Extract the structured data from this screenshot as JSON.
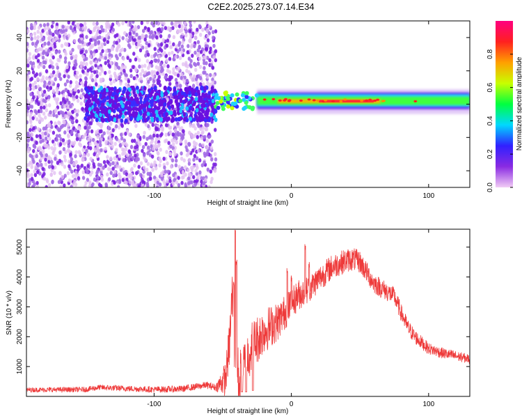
{
  "title": "C2E2.2025.273.07.14.E34",
  "chart_data": [
    {
      "type": "heatmap",
      "title": "C2E2.2025.273.07.14.E34",
      "xlabel": "Height of straight line (km)",
      "ylabel": "Frequency (Hz)",
      "xlim": [
        -193,
        130
      ],
      "ylim": [
        -50,
        50
      ],
      "xticks": [
        -100,
        0,
        100
      ],
      "xtick_labels": [
        "-100",
        "0",
        "100"
      ],
      "yticks": [
        -40,
        -20,
        0,
        20,
        40
      ],
      "ytick_labels": [
        "-40",
        "-20",
        "0",
        "20",
        "40"
      ],
      "colorbar": {
        "label": "Normalized spectral amplitude",
        "range": [
          0,
          1
        ],
        "ticks": [
          0.0,
          0.2,
          0.4,
          0.6,
          0.8
        ],
        "tick_labels": [
          "0.0",
          "0.2",
          "0.4",
          "0.6",
          "0.8"
        ],
        "colormap": [
          "#f2ccf5",
          "#8a2be2",
          "#3020ff",
          "#00d8ff",
          "#00ff40",
          "#c8ff00",
          "#ffa000",
          "#ff2020",
          "#ff0080"
        ]
      },
      "features": {
        "noise_region_x": [
          -193,
          -55
        ],
        "signal_line_freq_hz": [
          0,
          5
        ],
        "transition_x": [
          -55,
          -25
        ],
        "strong_line_x": [
          -25,
          100
        ],
        "broad_line_x": [
          60,
          130
        ]
      }
    },
    {
      "type": "line",
      "xlabel": "Height of straight line (km)",
      "ylabel": "SNR (10 * v/v)",
      "xlim": [
        -193,
        130
      ],
      "ylim": [
        0,
        5600
      ],
      "xticks": [
        -100,
        0,
        100
      ],
      "xtick_labels": [
        "-100",
        "0",
        "100"
      ],
      "yticks": [
        1000,
        2000,
        3000,
        4000,
        5000
      ],
      "ytick_labels": [
        "1000",
        "2000",
        "3000",
        "4000",
        "5000"
      ],
      "color": "#ee3a3a",
      "envelope": {
        "x": [
          -193,
          -150,
          -140,
          -100,
          -80,
          -62,
          -55,
          -48,
          -45,
          -43,
          -41,
          -38,
          -35,
          -30,
          -25,
          -20,
          -15,
          -10,
          -5,
          0,
          5,
          10,
          15,
          20,
          25,
          30,
          35,
          40,
          45,
          50,
          55,
          60,
          65,
          70,
          75,
          80,
          85,
          90,
          95,
          100,
          110,
          120,
          130
        ],
        "y": [
          220,
          230,
          300,
          230,
          250,
          380,
          300,
          600,
          1800,
          3500,
          1200,
          500,
          900,
          1600,
          1900,
          2200,
          2350,
          2500,
          2800,
          3100,
          3400,
          3500,
          3700,
          3950,
          4150,
          4350,
          4450,
          4550,
          4600,
          4500,
          4150,
          3800,
          3650,
          3500,
          3350,
          2800,
          2300,
          2000,
          1800,
          1600,
          1450,
          1350,
          1250
        ]
      },
      "noise": {
        "x": [
          -193,
          -55,
          -48,
          -40,
          -30,
          -10,
          0,
          20,
          50,
          80,
          100,
          130
        ],
        "y": [
          80,
          120,
          600,
          1100,
          900,
          650,
          550,
          450,
          380,
          300,
          200,
          160
        ]
      },
      "spikes": [
        {
          "x": -41,
          "y": 5600
        },
        {
          "x": -40,
          "y": 4600
        },
        {
          "x": -42,
          "y": 3900
        },
        {
          "x": 10,
          "y": 5100
        },
        {
          "x": 13,
          "y": 4500
        },
        {
          "x": -3,
          "y": 4300
        },
        {
          "x": 0,
          "y": 4050
        }
      ],
      "dips": [
        {
          "x": -36,
          "y": 150
        },
        {
          "x": -33,
          "y": 150
        },
        {
          "x": -28,
          "y": 200
        }
      ]
    }
  ]
}
